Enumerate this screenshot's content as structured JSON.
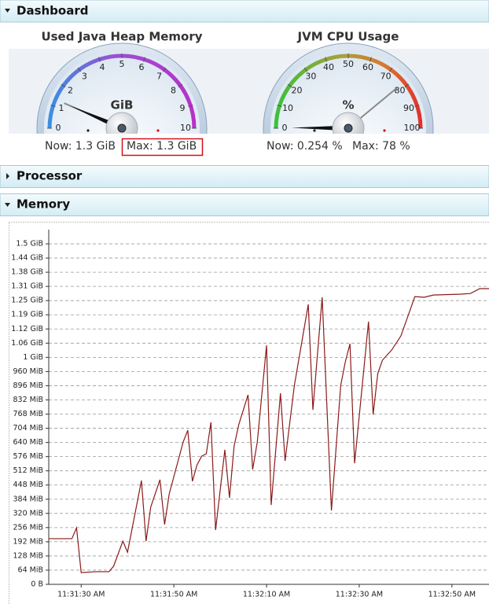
{
  "sections": [
    {
      "title": "Dashboard"
    },
    {
      "title": "Processor"
    },
    {
      "title": "Memory"
    }
  ],
  "gauges": [
    {
      "title": "Used Java Heap Memory",
      "unit": "GiB",
      "ticks": [
        0,
        1,
        2,
        3,
        4,
        5,
        6,
        7,
        8,
        9,
        10
      ],
      "value": 1.3,
      "max": 1.3,
      "now_text": "Now: 1.3 GiB",
      "max_text": "Max: 1.3 GiB"
    },
    {
      "title": "JVM CPU Usage",
      "unit": "%",
      "ticks": [
        0,
        10,
        20,
        30,
        40,
        50,
        60,
        70,
        80,
        90,
        100
      ],
      "value": 0.254,
      "max": 78,
      "now_text": "Now: 0.254 %",
      "max_text": "Max: 78 %"
    }
  ],
  "chart_data": {
    "type": "line",
    "color": "#8b1a1a",
    "grid": true,
    "x": [
      "11:31:23 AM",
      "11:31:28 AM",
      "11:31:29 AM",
      "11:31:30 AM",
      "11:31:33 AM",
      "11:31:36 AM",
      "11:31:37 AM",
      "11:31:39 AM",
      "11:31:40 AM",
      "11:31:43 AM",
      "11:31:44 AM",
      "11:31:45 AM",
      "11:31:47 AM",
      "11:31:48 AM",
      "11:31:49 AM",
      "11:31:52 AM",
      "11:31:53 AM",
      "11:31:54 AM",
      "11:31:55 AM",
      "11:31:56 AM",
      "11:31:57 AM",
      "11:31:58 AM",
      "11:31:59 AM",
      "11:32:01 AM",
      "11:32:02 AM",
      "11:32:03 AM",
      "11:32:04 AM",
      "11:32:06 AM",
      "11:32:07 AM",
      "11:32:08 AM",
      "11:32:10 AM",
      "11:32:11 AM",
      "11:32:13 AM",
      "11:32:14 AM",
      "11:32:16 AM",
      "11:32:19 AM",
      "11:32:20 AM",
      "11:32:22 AM",
      "11:32:24 AM",
      "11:32:26 AM",
      "11:32:27 AM",
      "11:32:28 AM",
      "11:32:29 AM",
      "11:32:32 AM",
      "11:32:33 AM",
      "11:32:34 AM",
      "11:32:35 AM",
      "11:32:37 AM",
      "11:32:39 AM",
      "11:32:42 AM",
      "11:32:44 AM",
      "11:32:46 AM",
      "11:32:52 AM",
      "11:32:54 AM",
      "11:32:56 AM",
      "11:32:58 AM"
    ],
    "values": [
      206,
      206,
      255,
      53,
      57,
      57,
      82,
      195,
      145,
      468,
      195,
      348,
      472,
      270,
      408,
      642,
      695,
      465,
      539,
      578,
      589,
      731,
      245,
      607,
      390,
      624,
      720,
      855,
      518,
      642,
      1078,
      358,
      862,
      557,
      897,
      1263,
      787,
      1295,
      333,
      897,
      1004,
      1085,
      546,
      1185,
      766,
      951,
      1011,
      1057,
      1121,
      1298,
      1295,
      1305,
      1309,
      1312,
      1334,
      1334
    ],
    "xlim": [
      "11:31:23 AM",
      "11:32:58 AM"
    ],
    "xticks": [
      "11:31:30 AM",
      "11:31:50 AM",
      "11:32:10 AM",
      "11:32:30 AM",
      "11:32:50 AM"
    ],
    "ylim": [
      0,
      1600
    ],
    "yticks": [
      {
        "value": 0,
        "label": "0 B"
      },
      {
        "value": 64,
        "label": "64 MiB"
      },
      {
        "value": 128,
        "label": "128 MiB"
      },
      {
        "value": 192,
        "label": "192 MiB"
      },
      {
        "value": 256,
        "label": "256 MiB"
      },
      {
        "value": 320,
        "label": "320 MiB"
      },
      {
        "value": 384,
        "label": "384 MiB"
      },
      {
        "value": 448,
        "label": "448 MiB"
      },
      {
        "value": 512,
        "label": "512 MiB"
      },
      {
        "value": 576,
        "label": "576 MiB"
      },
      {
        "value": 640,
        "label": "640 MiB"
      },
      {
        "value": 704,
        "label": "704 MiB"
      },
      {
        "value": 768,
        "label": "768 MiB"
      },
      {
        "value": 832,
        "label": "832 MiB"
      },
      {
        "value": 896,
        "label": "896 MiB"
      },
      {
        "value": 960,
        "label": "960 MiB"
      },
      {
        "value": 1024,
        "label": "1 GiB"
      },
      {
        "value": 1088,
        "label": "1.06 GiB"
      },
      {
        "value": 1152,
        "label": "1.12 GiB"
      },
      {
        "value": 1216,
        "label": "1.19 GiB"
      },
      {
        "value": 1280,
        "label": "1.25 GiB"
      },
      {
        "value": 1344,
        "label": "1.31 GiB"
      },
      {
        "value": 1408,
        "label": "1.38 GiB"
      },
      {
        "value": 1472,
        "label": "1.44 GiB"
      },
      {
        "value": 1536,
        "label": "1.5 GiB"
      }
    ]
  }
}
